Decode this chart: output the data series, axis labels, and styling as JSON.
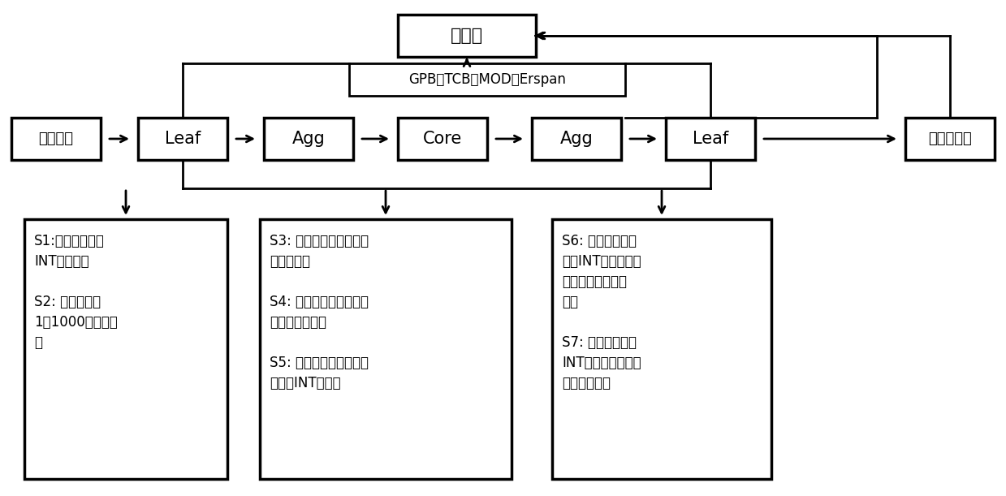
{
  "bg_color": "#ffffff",
  "collector_label": "收集器",
  "gpb_label": "GPB、TCB、MOD、Erspan",
  "source_label": "源服务器",
  "dest_label": "目的服务器",
  "nodes": [
    "Leaf",
    "Agg",
    "Core",
    "Agg",
    "Leaf"
  ],
  "box1_text": "S1:所有报文插入\nINT探测报头\n\nS2: 对报文进行\n1：1000采样并标\n记",
  "box2_text": "S3: 缓冲器超过水线时，\n设置拥塞位\n\nS4: 学习到新数据流时，\n设置新数据流位\n\nS5: 为所有事件或采样报\n文添加INT元数据",
  "box3_text": "S6: 筛选包含至少\n一个INT元数据的报\n文，复制并上报收\n集器\n\nS7: 移除原始报文\nINT相关头部，发到\n目的服务器上"
}
